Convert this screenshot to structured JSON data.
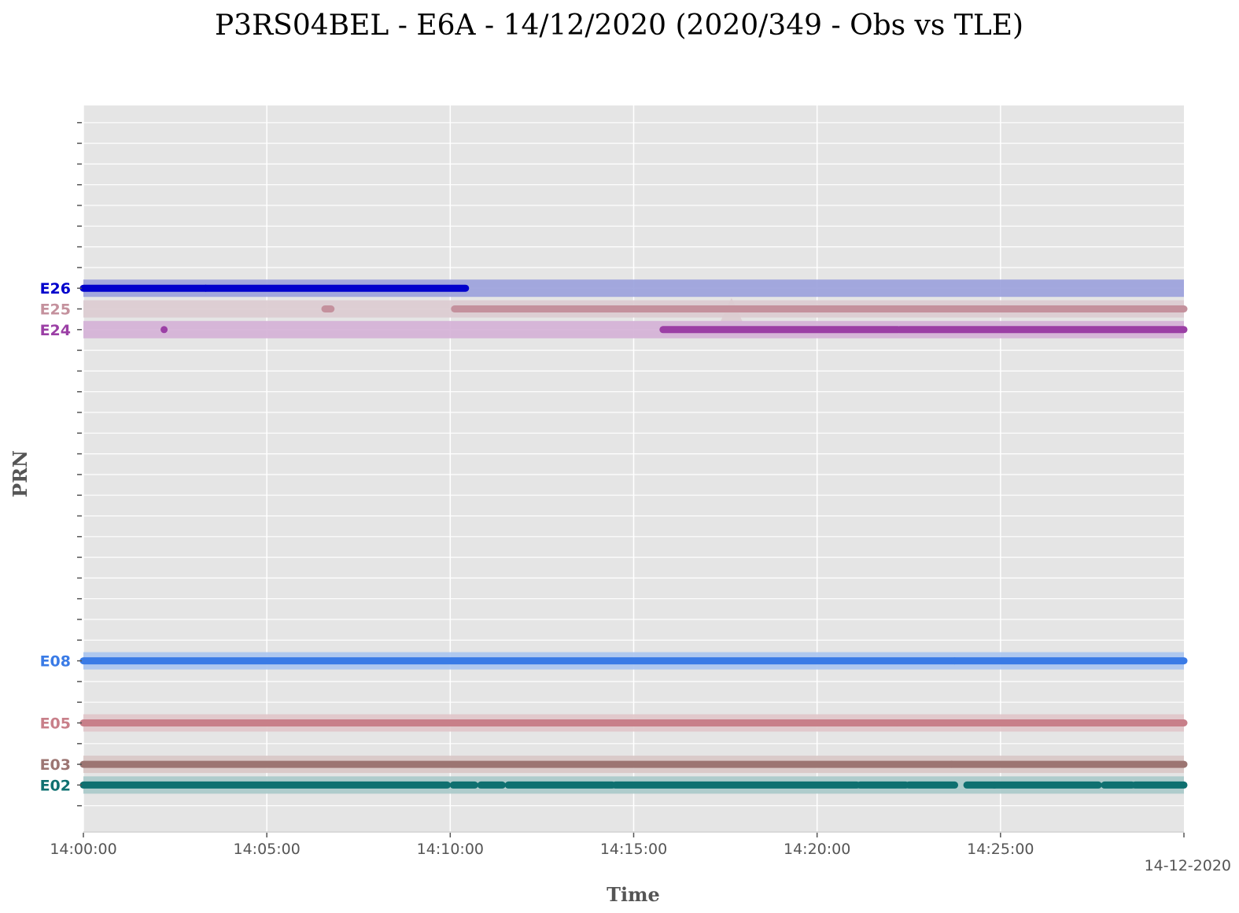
{
  "chart_data": {
    "type": "timeline",
    "title": "P3RS04BEL - E6A - 14/12/2020 (2020/349 - Obs vs TLE)",
    "xlabel": "Time",
    "ylabel": "PRN",
    "x_range": [
      "14:00:00",
      "14:30:00"
    ],
    "x_ticks": [
      "14:00:00",
      "14:05:00",
      "14:10:00",
      "14:15:00",
      "14:20:00",
      "14:25:00"
    ],
    "x_offset_label": "14-12-2020",
    "grid": true,
    "satellites": [
      {
        "prn": "E26",
        "color": "#0000cc",
        "tle_color": "#9aa0dc",
        "tle": [
          [
            "14:00:00",
            "14:30:00"
          ]
        ],
        "obs": [
          [
            "14:00:00",
            "14:03:20"
          ],
          [
            "14:03:20",
            "14:10:25"
          ]
        ]
      },
      {
        "prn": "E25",
        "color": "#c4919d",
        "tle_color": "#dccbd0",
        "tle": [
          [
            "14:00:00",
            "14:30:00"
          ]
        ],
        "obs": [
          [
            "14:06:35",
            "14:06:45"
          ],
          [
            "14:10:07",
            "14:23:20"
          ],
          [
            "14:23:20",
            "14:30:00"
          ]
        ],
        "marker": "14:17:40"
      },
      {
        "prn": "E24",
        "color": "#9b3fa5",
        "tle_color": "#d4b0d6",
        "tle": [
          [
            "14:00:00",
            "14:30:00"
          ]
        ],
        "obs": [
          [
            "14:02:12",
            "14:02:12"
          ],
          [
            "14:15:48",
            "14:22:12"
          ],
          [
            "14:22:15",
            "14:30:00"
          ]
        ]
      },
      {
        "prn": "E08",
        "color": "#3a7be6",
        "tle_color": "#a9c4f0",
        "tle": [
          [
            "14:00:00",
            "14:30:00"
          ]
        ],
        "obs": [
          [
            "14:00:00",
            "14:23:45"
          ],
          [
            "14:23:45",
            "14:30:00"
          ]
        ]
      },
      {
        "prn": "E05",
        "color": "#c87f89",
        "tle_color": "#e0c5c9",
        "tle": [
          [
            "14:00:00",
            "14:30:00"
          ]
        ],
        "obs": [
          [
            "14:00:00",
            "14:22:12"
          ],
          [
            "14:22:12",
            "14:30:00"
          ]
        ]
      },
      {
        "prn": "E03",
        "color": "#9c7572",
        "tle_color": "#d8c7c5",
        "tle": [
          [
            "14:00:00",
            "14:30:00"
          ]
        ],
        "obs": [
          [
            "14:00:00",
            "14:23:40"
          ],
          [
            "14:23:40",
            "14:30:00"
          ]
        ]
      },
      {
        "prn": "E02",
        "color": "#0f7070",
        "tle_color": "#a8c9c9",
        "tle": [
          [
            "14:00:00",
            "14:30:00"
          ]
        ],
        "obs": [
          [
            "14:00:00",
            "14:09:55"
          ],
          [
            "14:10:05",
            "14:10:40"
          ],
          [
            "14:10:50",
            "14:11:25"
          ],
          [
            "14:11:35",
            "14:14:25"
          ],
          [
            "14:14:30",
            "14:21:05"
          ],
          [
            "14:21:10",
            "14:22:25"
          ],
          [
            "14:22:30",
            "14:23:45"
          ],
          [
            "14:24:05",
            "14:24:50"
          ],
          [
            "14:24:50",
            "14:27:40"
          ],
          [
            "14:27:50",
            "14:28:35"
          ],
          [
            "14:28:40",
            "14:30:00"
          ]
        ]
      }
    ]
  }
}
